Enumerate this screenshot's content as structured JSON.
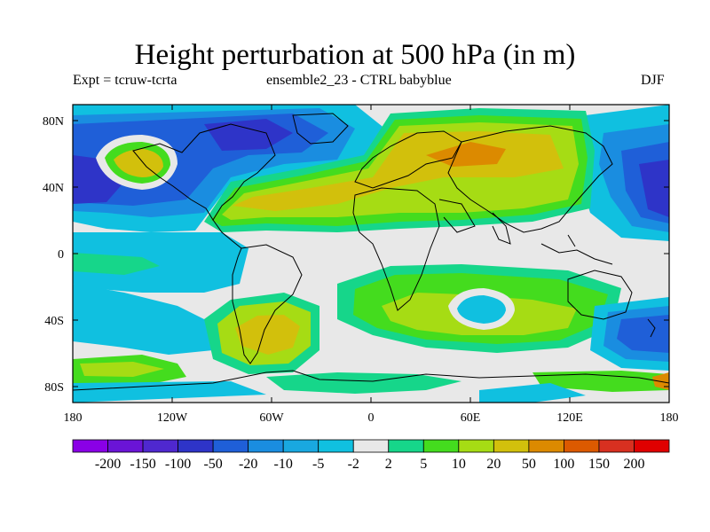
{
  "title": "Height perturbation at 500 hPa (in m)",
  "subtitle_left": "Expt = tcruw-tcrta",
  "subtitle_center": "ensemble2_23 - CTRL babyblue",
  "subtitle_right": "DJF",
  "axes": {
    "lat_ticks": [
      "80N",
      "40N",
      "0",
      "40S",
      "80S"
    ],
    "lon_ticks": [
      "180",
      "120W",
      "60W",
      "0",
      "60E",
      "120E",
      "180"
    ]
  },
  "colorbar": {
    "labels": [
      "-200",
      "-150",
      "-100",
      "-50",
      "-20",
      "-10",
      "-5",
      "-2",
      "2",
      "5",
      "10",
      "20",
      "50",
      "100",
      "150",
      "200"
    ],
    "colors": [
      "#8a00e6",
      "#6a14d6",
      "#4f28cf",
      "#2e34c8",
      "#1f5fd8",
      "#1a8de0",
      "#19a8e0",
      "#10c0e0",
      "#e8e8e8",
      "#16d68a",
      "#44dc1e",
      "#a6dc14",
      "#d2c00c",
      "#dc8a00",
      "#dc5a00",
      "#d83020",
      "#e00000"
    ]
  }
}
